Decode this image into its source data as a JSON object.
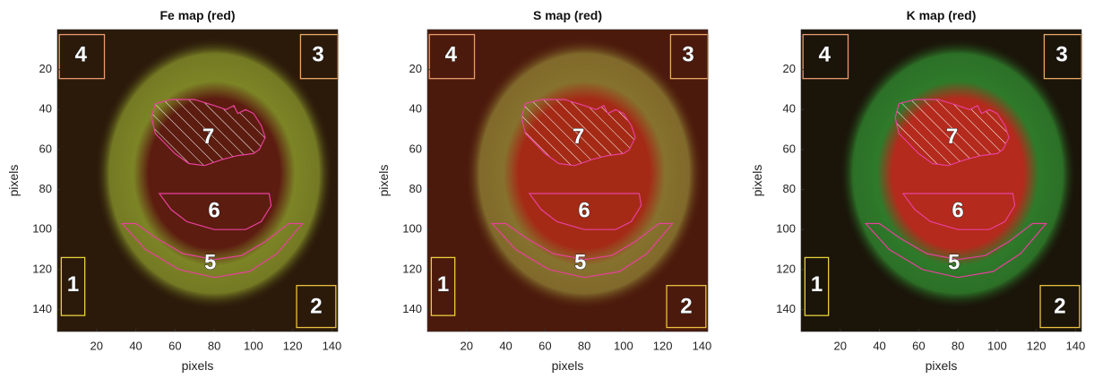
{
  "chart_data": [
    {
      "type": "image",
      "title": "Fe map (red)",
      "xlabel": "pixels",
      "ylabel": "pixels",
      "xlim": [
        0,
        143
      ],
      "ylim": [
        0,
        151
      ],
      "y_reversed": true,
      "xticks": [
        20,
        40,
        60,
        80,
        100,
        120,
        140
      ],
      "yticks": [
        20,
        40,
        60,
        80,
        100,
        120,
        140
      ],
      "region_labels": [
        1,
        2,
        3,
        4,
        5,
        6,
        7
      ],
      "colors": {
        "background": "#2b1a0a",
        "ring": "#7c8426",
        "core": "#5c1c10"
      }
    },
    {
      "type": "image",
      "title": "S map (red)",
      "xlabel": "pixels",
      "ylabel": "pixels",
      "xlim": [
        0,
        143
      ],
      "ylim": [
        0,
        151
      ],
      "y_reversed": true,
      "xticks": [
        20,
        40,
        60,
        80,
        100,
        120,
        140
      ],
      "yticks": [
        20,
        40,
        60,
        80,
        100,
        120,
        140
      ],
      "region_labels": [
        1,
        2,
        3,
        4,
        5,
        6,
        7
      ],
      "colors": {
        "background": "#4c1a0c",
        "ring": "#86722e",
        "core": "#a42a16"
      }
    },
    {
      "type": "image",
      "title": "K map (red)",
      "xlabel": "pixels",
      "ylabel": "pixels",
      "xlim": [
        0,
        143
      ],
      "ylim": [
        0,
        151
      ],
      "y_reversed": true,
      "xticks": [
        20,
        40,
        60,
        80,
        100,
        120,
        140
      ],
      "yticks": [
        20,
        40,
        60,
        80,
        100,
        120,
        140
      ],
      "region_labels": [
        1,
        2,
        3,
        4,
        5,
        6,
        7
      ],
      "colors": {
        "background": "#1a1409",
        "ring": "#2e7a2a",
        "core": "#b42a1c"
      }
    }
  ]
}
